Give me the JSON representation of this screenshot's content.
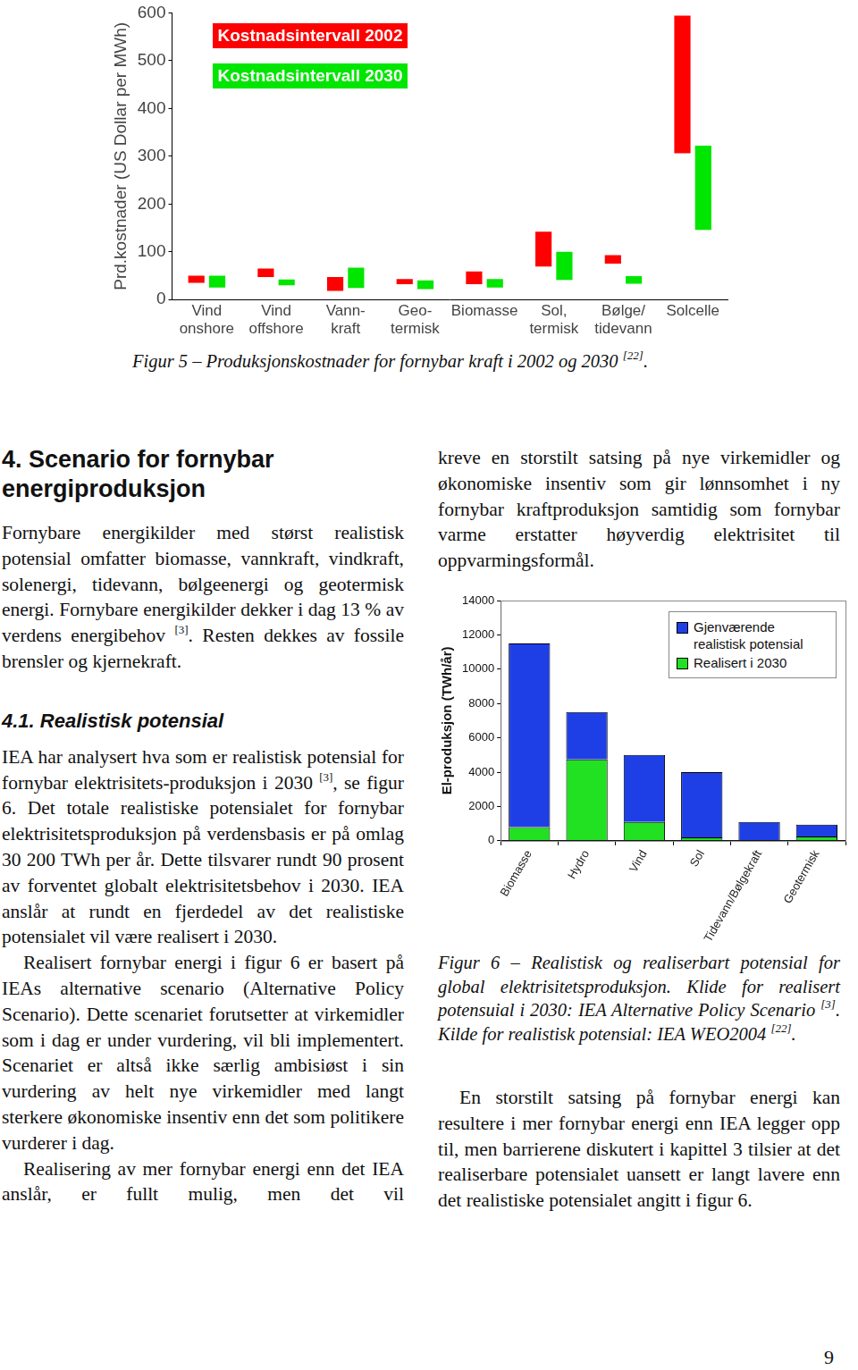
{
  "chart_data": [
    {
      "type": "bar",
      "ylabel": "Prd.kostnader (US Dollar per MWh)",
      "categories": [
        [
          "Vind",
          "onshore"
        ],
        [
          "Vind",
          "offshore"
        ],
        [
          "Vann-",
          "kraft"
        ],
        [
          "Geo-",
          "termisk"
        ],
        [
          "Biomasse"
        ],
        [
          "Sol,",
          "termisk"
        ],
        [
          "Bølge/",
          "tidevann"
        ],
        [
          "Solcelle"
        ]
      ],
      "series": [
        {
          "name": "Kostnadsintervall 2002",
          "color": "#ff0000",
          "values": [
            [
              35,
              50
            ],
            [
              47,
              65
            ],
            [
              18,
              47
            ],
            [
              32,
              43
            ],
            [
              32,
              59
            ],
            [
              69,
              142
            ],
            [
              75,
              93
            ],
            [
              306,
              594
            ]
          ]
        },
        {
          "name": "Kostnadsintervall 2030",
          "color": "#00e600",
          "values": [
            [
              25,
              50
            ],
            [
              30,
              42
            ],
            [
              24,
              67
            ],
            [
              22,
              40
            ],
            [
              25,
              43
            ],
            [
              41,
              100
            ],
            [
              33,
              49
            ],
            [
              146,
              322
            ]
          ]
        }
      ],
      "ylim": [
        0,
        600
      ],
      "yticks": [
        0,
        100,
        200,
        300,
        400,
        500,
        600
      ],
      "grid": false,
      "legend": "upper left"
    },
    {
      "type": "bar",
      "ylabel": "El-produksjon (TWh/år)",
      "categories": [
        "Biomasse",
        "Hydro",
        "Vind",
        "Sol",
        "Tidevann/Bølgekraft",
        "Geotermisk"
      ],
      "series": [
        {
          "name": "Gjenværende realistisk potensial",
          "color": "#1f3fe6",
          "values": [
            10700,
            2750,
            3900,
            3800,
            1050,
            700
          ]
        },
        {
          "name": "Realisert i 2030",
          "color": "#22e022",
          "values": [
            800,
            4750,
            1100,
            200,
            50,
            250
          ]
        }
      ],
      "ylim": [
        0,
        14000
      ],
      "yticks": [
        0,
        2000,
        4000,
        6000,
        8000,
        10000,
        12000,
        14000
      ],
      "stacked": true,
      "grid": false,
      "legend": "upper right"
    }
  ],
  "document": {
    "figure5_caption": [
      "Figur 5 – Produksjonskostnader for fornybar kraft i 2002 og 2030 ",
      {
        "sup": "[22]"
      },
      "."
    ],
    "left_column": [
      {
        "heading": "4. Scenario for fornybar energiproduksjon"
      },
      {
        "paragraph": [
          "Fornybare energikilder med størst realistisk potensial omfatter biomasse, vannkraft, vindkraft, solenergi, tidevann, bølgeenergi og geotermisk energi. Fornybare energikilder dekker i dag 13 % av verdens energibehov ",
          {
            "sup": "[3]"
          },
          ". Resten dekkes av fossile brensler og kjernekraft."
        ],
        "indent": false
      },
      {
        "subheading": "4.1. Realistisk potensial"
      },
      {
        "paragraph": [
          "IEA har analysert hva som er realistisk potensial for fornybar elektrisitets-produksjon i 2030 ",
          {
            "sup": "[3]"
          },
          ", se figur 6. Det totale realistiske potensialet for fornybar elektrisitetsproduksjon på verdensbasis er på omlag 30 200 TWh per år. Dette tilsvarer rundt 90 prosent av forventet globalt elektrisitetsbehov i 2030. IEA anslår at rundt en fjerdedel av det realistiske potensialet vil være realisert i 2030."
        ],
        "indent": false
      },
      {
        "paragraph": [
          "Realisert fornybar energi i figur 6 er basert på IEAs alternative scenario (Alternative Policy Scenario). Dette scenariet forutsetter at virkemidler som i dag er under vurdering, vil bli implementert. Scenariet er altså ikke særlig ambisiøst i sin vurdering av helt nye virkemidler med langt sterkere økonomiske insentiv enn det som politikere vurderer i dag."
        ],
        "indent": true
      },
      {
        "paragraph": [
          "Realisering av mer fornybar energi enn det IEA anslår, er fullt mulig, men det vil"
        ],
        "indent": true
      }
    ],
    "right_column_top": [
      "kreve en storstilt satsing på nye virkemidler og økonomiske insentiv som gir lønnsomhet i ny fornybar kraftproduksjon samtidig som fornybar varme erstatter høyverdig elektrisitet til oppvarmingsformål."
    ],
    "figure6_caption": [
      "Figur 6 – Realistisk og realiserbart potensial for global elektrisitetsproduksjon. Klide for realisert potensuial i 2030: IEA Alternative Policy Scenario ",
      {
        "sup": "[3]"
      },
      ". Kilde for realistisk potensial: IEA WEO2004 ",
      {
        "sup": "[22]"
      },
      "."
    ],
    "right_column_bottom": [
      "En storstilt satsing på fornybar energi kan resultere i mer fornybar energi enn IEA legger opp til, men barrierene diskutert i kapittel 3 tilsier at det realiserbare potensialet uansett er langt lavere enn det realistiske potensialet angitt i figur 6."
    ],
    "page_number": "9"
  }
}
